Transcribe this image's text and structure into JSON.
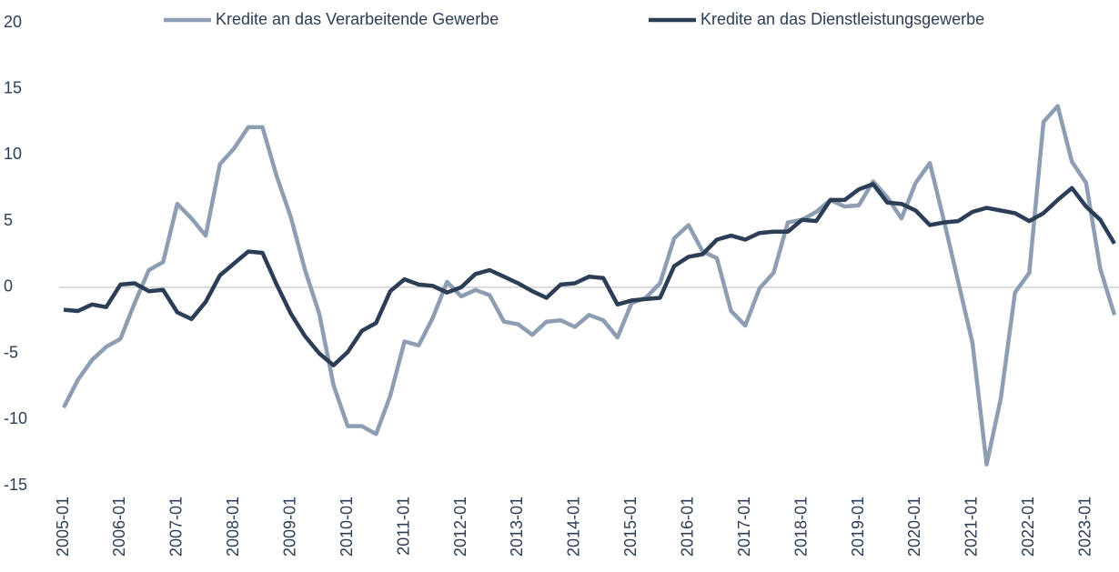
{
  "chart_data": {
    "type": "line",
    "categories": [
      "2005-01",
      null,
      null,
      null,
      "2006-01",
      null,
      null,
      null,
      "2007-01",
      null,
      null,
      null,
      "2008-01",
      null,
      null,
      null,
      "2009-01",
      null,
      null,
      null,
      "2010-01",
      null,
      null,
      null,
      "2011-01",
      null,
      null,
      null,
      "2012-01",
      null,
      null,
      null,
      "2013-01",
      null,
      null,
      null,
      "2014-01",
      null,
      null,
      null,
      "2015-01",
      null,
      null,
      null,
      "2016-01",
      null,
      null,
      null,
      "2017-01",
      null,
      null,
      null,
      "2018-01",
      null,
      null,
      null,
      "2019-01",
      null,
      null,
      null,
      "2020-01",
      null,
      null,
      null,
      "2021-01",
      null,
      null,
      null,
      "2022-01",
      null,
      null,
      null,
      "2023-01",
      null,
      null
    ],
    "series": [
      {
        "name": "Kredite an das Verarbeitende Gewerbe",
        "color": "#8d9eb2",
        "values": [
          -9.1,
          -7.0,
          -5.5,
          -4.5,
          -3.9,
          -1.2,
          1.3,
          1.9,
          6.3,
          5.2,
          3.9,
          9.3,
          10.5,
          12.1,
          12.1,
          8.4,
          5.3,
          1.3,
          -2.0,
          -7.4,
          -10.5,
          -10.5,
          -11.1,
          -8.2,
          -4.1,
          -4.4,
          -2.3,
          0.4,
          -0.7,
          -0.2,
          -0.6,
          -2.6,
          -2.8,
          -3.6,
          -2.6,
          -2.5,
          -3.0,
          -2.1,
          -2.5,
          -3.8,
          -1.2,
          -0.8,
          0.3,
          3.7,
          4.7,
          2.7,
          2.2,
          -1.8,
          -2.9,
          -0.1,
          1.1,
          4.9,
          5.1,
          5.7,
          6.6,
          6.1,
          6.2,
          8.0,
          6.8,
          5.2,
          7.9,
          9.4,
          5.0,
          0.4,
          -4.2,
          -13.4,
          -8.4,
          -0.4,
          1.1,
          12.5,
          13.7,
          9.5,
          7.9,
          1.4,
          -2.1
        ]
      },
      {
        "name": "Kredite an das Dienstleistungsgewerbe",
        "color": "#2b3e56",
        "values": [
          -1.7,
          -1.8,
          -1.3,
          -1.5,
          0.2,
          0.3,
          -0.3,
          -0.2,
          -1.9,
          -2.4,
          -1.1,
          0.9,
          1.8,
          2.7,
          2.6,
          0.2,
          -2.0,
          -3.7,
          -5.0,
          -5.9,
          -4.9,
          -3.3,
          -2.7,
          -0.3,
          0.6,
          0.2,
          0.1,
          -0.4,
          0.0,
          1.0,
          1.3,
          0.8,
          0.3,
          -0.3,
          -0.8,
          0.2,
          0.3,
          0.8,
          0.7,
          -1.3,
          -1.0,
          -0.9,
          -0.8,
          1.6,
          2.3,
          2.5,
          3.6,
          3.9,
          3.6,
          4.1,
          4.2,
          4.2,
          5.1,
          5.0,
          6.6,
          6.6,
          7.4,
          7.8,
          6.4,
          6.3,
          5.8,
          4.7,
          4.9,
          5.0,
          5.7,
          6.0,
          5.8,
          5.6,
          5.0,
          5.6,
          6.6,
          7.5,
          6.1,
          5.1,
          3.3
        ]
      }
    ],
    "ylim": [
      -15,
      20
    ],
    "yticks": [
      -15,
      -10,
      -5,
      0,
      5,
      10,
      15,
      20
    ],
    "zero_line": true,
    "legend": "top"
  }
}
